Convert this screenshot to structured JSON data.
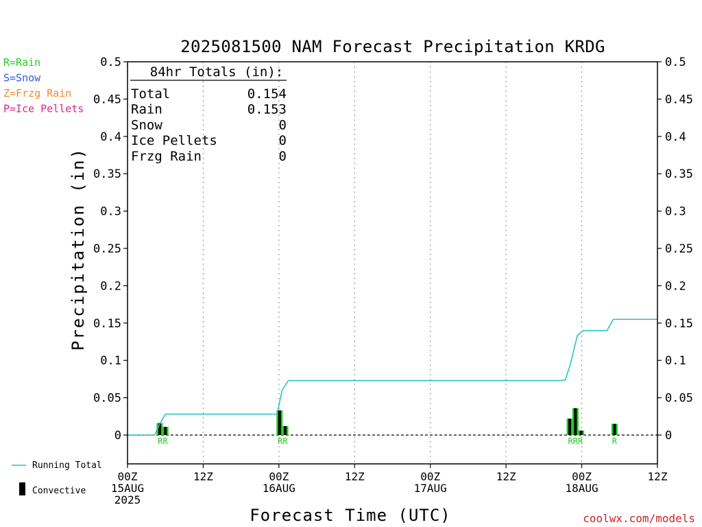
{
  "chart_data": {
    "type": "bar",
    "title": "2025081500 NAM Forecast Precipitation KRDG",
    "ylabel": "Precipitation (in)",
    "xlabel": "Forecast Time (UTC)",
    "ylim": [
      -0.04,
      0.5
    ],
    "xlim_hours": [
      0,
      84
    ],
    "yticks": [
      0,
      0.05,
      0.1,
      0.15,
      0.2,
      0.25,
      0.3,
      0.35,
      0.4,
      0.45,
      0.5
    ],
    "ytick_labels": [
      "0",
      "0.05",
      "0.1",
      "0.15",
      "0.2",
      "0.25",
      "0.3",
      "0.35",
      "0.4",
      "0.45",
      "0.5"
    ],
    "xticks": [
      {
        "hour": 0,
        "lines": [
          "00Z",
          "15AUG",
          "2025"
        ]
      },
      {
        "hour": 12,
        "lines": [
          "12Z"
        ]
      },
      {
        "hour": 24,
        "lines": [
          "00Z",
          "16AUG"
        ]
      },
      {
        "hour": 36,
        "lines": [
          "12Z"
        ]
      },
      {
        "hour": 48,
        "lines": [
          "00Z",
          "17AUG"
        ]
      },
      {
        "hour": 60,
        "lines": [
          "12Z"
        ]
      },
      {
        "hour": 72,
        "lines": [
          "00Z",
          "18AUG"
        ]
      },
      {
        "hour": 84,
        "lines": [
          "12Z"
        ]
      }
    ],
    "grid": "vertical-dotted",
    "bars": [
      {
        "hour": 5.1,
        "value": 0.016,
        "convective": 0.006
      },
      {
        "hour": 6.0,
        "value": 0.011,
        "convective": 0.004
      },
      {
        "hour": 24.1,
        "value": 0.033,
        "convective": 0.012
      },
      {
        "hour": 25.0,
        "value": 0.012,
        "convective": 0.004
      },
      {
        "hour": 70.1,
        "value": 0.022,
        "convective": 0.008
      },
      {
        "hour": 71.0,
        "value": 0.036,
        "convective": 0.013
      },
      {
        "hour": 71.9,
        "value": 0.006,
        "convective": 0.002
      },
      {
        "hour": 77.2,
        "value": 0.015,
        "convective": 0.005
      }
    ],
    "ptype_labels": [
      {
        "hour": 5.6,
        "text": "RR"
      },
      {
        "hour": 24.6,
        "text": "RR"
      },
      {
        "hour": 71.0,
        "text": "RRR"
      },
      {
        "hour": 77.2,
        "text": "R"
      }
    ],
    "running_total": {
      "name": "Running Total",
      "points": [
        [
          0,
          0
        ],
        [
          4.3,
          0
        ],
        [
          5,
          0.013
        ],
        [
          6,
          0.028
        ],
        [
          23.7,
          0.028
        ],
        [
          24.5,
          0.06
        ],
        [
          25.5,
          0.073
        ],
        [
          68.7,
          0.073
        ],
        [
          69.4,
          0.074
        ],
        [
          70.2,
          0.095
        ],
        [
          71.3,
          0.133
        ],
        [
          72.2,
          0.14
        ],
        [
          76,
          0.14
        ],
        [
          77,
          0.155
        ],
        [
          84,
          0.155
        ]
      ]
    },
    "legend": [
      {
        "text": "R=Rain",
        "color": "#22cc22"
      },
      {
        "text": "S=Snow",
        "color": "#3355ee"
      },
      {
        "text": "Z=Frzg Rain",
        "color": "#ee8833"
      },
      {
        "text": "P=Ice Pellets",
        "color": "#e0208c"
      }
    ],
    "totals_header": "84hr Totals (in):",
    "totals": [
      {
        "label": "Total",
        "value": "0.154"
      },
      {
        "label": "Rain",
        "value": "0.153"
      },
      {
        "label": "Snow",
        "value": "0"
      },
      {
        "label": "Ice Pellets",
        "value": "0"
      },
      {
        "label": "Frzg Rain",
        "value": "0"
      }
    ],
    "legend_bottom": {
      "running_total": "Running Total",
      "convective": "Convective"
    },
    "colors": {
      "rain": "#22cc22",
      "convective": "#000000",
      "running_total": "#20c0c0",
      "credit": "#cc2222"
    },
    "credit": "coolwx.com/models"
  }
}
